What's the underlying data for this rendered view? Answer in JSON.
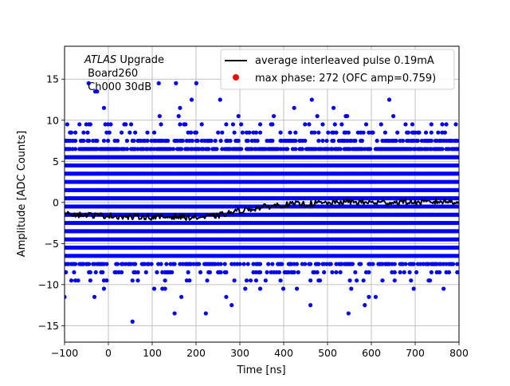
{
  "chart_data": {
    "type": "scatter",
    "title": "",
    "xlabel": "Time [ns]",
    "ylabel": "Amplitude [ADC Counts]",
    "xlim": [
      -100,
      800
    ],
    "ylim": [
      -17,
      19
    ],
    "xticks": [
      -100,
      0,
      100,
      200,
      300,
      400,
      500,
      600,
      700,
      800
    ],
    "xtick_labels": [
      "−100",
      "0",
      "100",
      "200",
      "300",
      "400",
      "500",
      "600",
      "700",
      "800"
    ],
    "yticks": [
      -15,
      -10,
      -5,
      0,
      5,
      10,
      15
    ],
    "ytick_labels": [
      "−15",
      "−10",
      "−5",
      "0",
      "5",
      "10",
      "15"
    ],
    "grid": true,
    "legend_position": "top-right",
    "annotation": {
      "atlas": "ATLAS",
      "upgrade": " Upgrade",
      "board": " Board260",
      "channel": " Ch000 30dB"
    },
    "series": [
      {
        "name": "average interleaved pulse 0.19mA",
        "kind": "line",
        "color": "#000000",
        "points": [
          [
            -100,
            -1.0
          ],
          [
            -75,
            -1.5
          ],
          [
            -50,
            -1.5
          ],
          [
            -25,
            -1.6
          ],
          [
            0,
            -1.6
          ],
          [
            25,
            -1.7
          ],
          [
            50,
            -1.8
          ],
          [
            75,
            -1.7
          ],
          [
            100,
            -1.8
          ],
          [
            125,
            -1.8
          ],
          [
            150,
            -1.7
          ],
          [
            175,
            -1.8
          ],
          [
            200,
            -1.8
          ],
          [
            225,
            -1.8
          ],
          [
            250,
            -1.6
          ],
          [
            275,
            -1.3
          ],
          [
            300,
            -1.0
          ],
          [
            325,
            -0.8
          ],
          [
            350,
            -0.6
          ],
          [
            375,
            -0.4
          ],
          [
            400,
            -0.3
          ],
          [
            425,
            -0.2
          ],
          [
            450,
            -0.2
          ],
          [
            475,
            -0.1
          ],
          [
            500,
            -0.1
          ],
          [
            525,
            0.0
          ],
          [
            550,
            0.1
          ],
          [
            575,
            0.0
          ],
          [
            600,
            0.0
          ],
          [
            625,
            0.0
          ],
          [
            650,
            0.0
          ],
          [
            675,
            0.1
          ],
          [
            700,
            0.0
          ],
          [
            725,
            0.0
          ],
          [
            750,
            0.1
          ],
          [
            775,
            0.1
          ],
          [
            800,
            0.1
          ]
        ]
      },
      {
        "name": "max phase: 272 (OFC amp=0.759)",
        "kind": "scatter",
        "color": "#0000ff",
        "legend_marker_color": "#ff0000",
        "amplitude_levels": [
          -13.5,
          -12.5,
          -11.5,
          -10.5,
          -9.5,
          -8.5,
          -7.5,
          -6.5,
          -5.5,
          -4.5,
          -3.5,
          -2.5,
          -1.5,
          -0.5,
          0.5,
          1.5,
          2.5,
          3.5,
          4.5,
          5.5,
          6.5,
          7.5,
          8.5,
          9.5,
          10.5,
          11.5,
          12.5,
          13.5,
          14.5
        ],
        "level_fill_fraction": [
          0.003,
          0.005,
          0.02,
          0.04,
          0.1,
          0.25,
          0.55,
          1.0,
          1.0,
          1.0,
          1.0,
          1.0,
          1.0,
          1.0,
          1.0,
          1.0,
          1.0,
          1.0,
          1.0,
          1.0,
          0.75,
          0.45,
          0.22,
          0.1,
          0.04,
          0.02,
          0.01,
          0.005,
          0.003
        ],
        "outliers": [
          [
            -100,
            -11.5
          ],
          [
            55,
            -14.5
          ],
          [
            115,
            14.5
          ],
          [
            -45,
            14.5
          ],
          [
            -30,
            13.5
          ],
          [
            585,
            -12.5
          ],
          [
            190,
            12.5
          ],
          [
            255,
            12.5
          ]
        ]
      }
    ]
  }
}
